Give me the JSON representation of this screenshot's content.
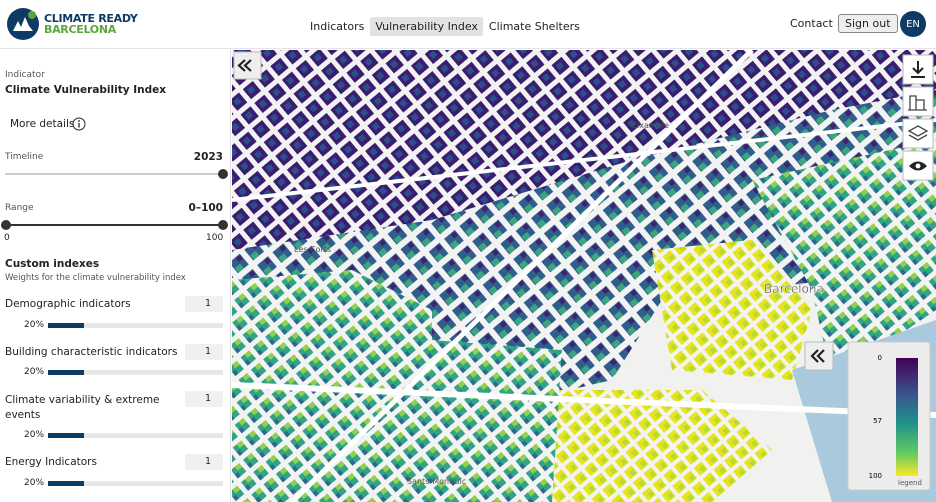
{
  "header": {
    "logo_line1": "CLIMATE READY",
    "logo_line2": "BARCELONA",
    "nav": [
      "Indicators",
      "Vulnerability Index",
      "Climate Shelters"
    ],
    "contact": "Contact",
    "sign_out": "Sign out",
    "language": "EN"
  },
  "sidebar": {
    "indicator_label": "Indicator",
    "indicator_value": "Climate Vulnerability Index",
    "more_details": "More details",
    "timeline": {
      "label": "Timeline",
      "value": "2023"
    },
    "range": {
      "label": "Range",
      "value": "0–100",
      "min": "0",
      "max": "100"
    },
    "custom": {
      "title": "Custom indexes",
      "subtitle": "Weights for the climate vulnerability index",
      "items": [
        {
          "label": "Demographic indicators",
          "weight": "1",
          "share": "20%"
        },
        {
          "label": "Building characteristic indicators",
          "weight": "1",
          "share": "20%"
        },
        {
          "label": "Climate variability & extreme events",
          "weight": "1",
          "share": "20%"
        },
        {
          "label": "Energy Indicators",
          "weight": "1",
          "share": "20%"
        }
      ]
    }
  },
  "map": {
    "places": [
      "Eixample",
      "Les Corts",
      "Barcelona",
      "Sants-Montjuïc"
    ],
    "legend": {
      "ticks": [
        "0",
        "57",
        "100"
      ],
      "title": "legend"
    }
  }
}
